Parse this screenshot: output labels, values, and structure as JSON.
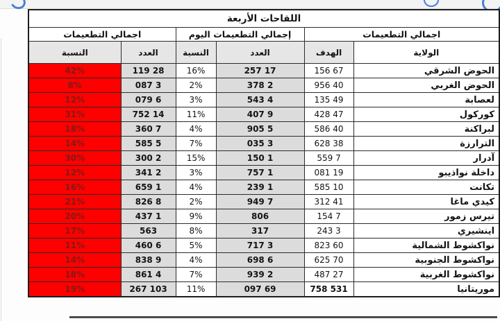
{
  "title": "اللقاحات الأربعة",
  "groups": {
    "overall_right": "اجمالي التطعيمات",
    "today": "إجمالي التطعيمات اليوم",
    "overall_left": "اجمالي التطعيمات"
  },
  "columns": {
    "wilaya": "الولاية",
    "target": "الهدف",
    "today_count": "العدد",
    "today_pct": "النسبة",
    "total_count": "العدد",
    "total_pct": "النسبة"
  },
  "colors": {
    "red_fill": "#fe0000",
    "red_text": "#7c1c16",
    "grey_fill": "#dcdcdc",
    "header_fill": "#e6e6e6",
    "border": "#2b2b2b",
    "accent_blue": "#4a7fd0"
  },
  "rows": [
    {
      "wilaya": "الحوض الشرقي",
      "target": "67 156",
      "today_count": "17 257",
      "today_pct": "16%",
      "total_count": "28 119",
      "total_pct": "42%"
    },
    {
      "wilaya": "الحوض الغربي",
      "target": "40 956",
      "today_count": "2 378",
      "today_pct": "2%",
      "total_count": "3 087",
      "total_pct": "8%"
    },
    {
      "wilaya": "لعصابة",
      "target": "49 135",
      "today_count": "4 543",
      "today_pct": "3%",
      "total_count": "6 079",
      "total_pct": "12%"
    },
    {
      "wilaya": "كوركول",
      "target": "47 428",
      "today_count": "9 407",
      "today_pct": "11%",
      "total_count": "14 752",
      "total_pct": "31%"
    },
    {
      "wilaya": "لبراكنة",
      "target": "40 586",
      "today_count": "5 905",
      "today_pct": "4%",
      "total_count": "7 360",
      "total_pct": "18%"
    },
    {
      "wilaya": "الترارزة",
      "target": "38 628",
      "today_count": "3 035",
      "today_pct": "7%",
      "total_count": "5 585",
      "total_pct": "14%"
    },
    {
      "wilaya": "آدرار",
      "target": "7 559",
      "today_count": "1 150",
      "today_pct": "15%",
      "total_count": "2 300",
      "total_pct": "30%"
    },
    {
      "wilaya": "داخلة نواذيبو",
      "target": "19 081",
      "today_count": "1 757",
      "today_pct": "3%",
      "total_count": "2 341",
      "total_pct": "12%"
    },
    {
      "wilaya": "تكانت",
      "target": "10 585",
      "today_count": "1 239",
      "today_pct": "4%",
      "total_count": "1 659",
      "total_pct": "16%"
    },
    {
      "wilaya": "كيدي ماغا",
      "target": "41 312",
      "today_count": "7 949",
      "today_pct": "2%",
      "total_count": "8 826",
      "total_pct": "21%"
    },
    {
      "wilaya": "تيرس زمور",
      "target": "7 154",
      "today_count": "806",
      "today_pct": "9%",
      "total_count": "1 437",
      "total_pct": "20%"
    },
    {
      "wilaya": "اينشيري",
      "target": "3 243",
      "today_count": "317",
      "today_pct": "8%",
      "total_count": "563",
      "total_pct": "17%"
    },
    {
      "wilaya": "نواكشوط الشمالية",
      "target": "60 823",
      "today_count": "3 717",
      "today_pct": "5%",
      "total_count": "6 460",
      "total_pct": "11%"
    },
    {
      "wilaya": "نواكشوط الجنوبية",
      "target": "70 625",
      "today_count": "6 698",
      "today_pct": "4%",
      "total_count": "9 838",
      "total_pct": "14%"
    },
    {
      "wilaya": "نواكشوط الغربية",
      "target": "27 487",
      "today_count": "2 939",
      "today_pct": "7%",
      "total_count": "4 861",
      "total_pct": "18%"
    }
  ],
  "total_row": {
    "wilaya": "موريتانيا",
    "target": "531 758",
    "today_count": "69 097",
    "today_pct": "11%",
    "total_count": "103 267",
    "total_pct": "19%"
  }
}
